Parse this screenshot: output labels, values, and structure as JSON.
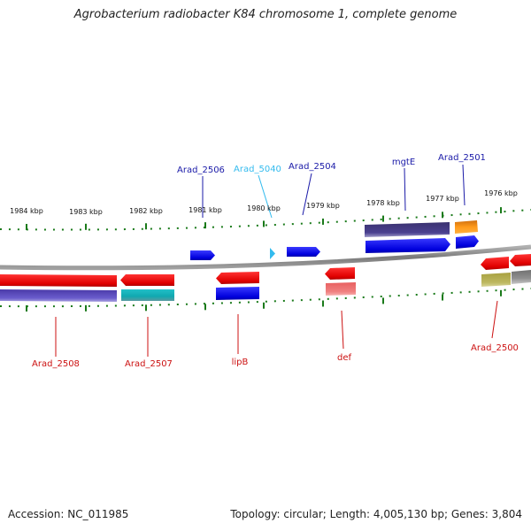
{
  "title": "Agrobacterium radiobacter K84 chromosome 1, complete genome",
  "footer": {
    "accession": "Accession: NC_011985",
    "topology": "Topology: circular; Length: 4,005,130 bp; Genes: 3,804"
  },
  "colors": {
    "forward_gene": "#0000ee",
    "reverse_gene": "#ee0000",
    "backbone": "#8a8a8a",
    "ticks": "#1a7a1a",
    "forward_label": "#1a1aa8",
    "reverse_label": "#cc1111",
    "rna_label": "#33bbee"
  },
  "scale_labels": [
    "1984 kbp",
    "1983 kbp",
    "1982 kbp",
    "1981 kbp",
    "1980 kbp",
    "1979 kbp",
    "1978 kbp",
    "1977 kbp",
    "1976 kbp"
  ],
  "gene_labels": {
    "top": [
      {
        "text": "Arad_2506",
        "color": "#1a1aa8"
      },
      {
        "text": "Arad_5040",
        "color": "#33bbee"
      },
      {
        "text": "Arad_2504",
        "color": "#1a1aa8"
      },
      {
        "text": "mgtE",
        "color": "#1a1aa8"
      },
      {
        "text": "Arad_2501",
        "color": "#1a1aa8"
      }
    ],
    "bottom": [
      {
        "text": "Arad_2508",
        "color": "#cc1111"
      },
      {
        "text": "Arad_2507",
        "color": "#cc1111"
      },
      {
        "text": "lipB",
        "color": "#cc1111"
      },
      {
        "text": "def",
        "color": "#cc1111"
      },
      {
        "text": "Arad_2500",
        "color": "#cc1111"
      }
    ]
  }
}
